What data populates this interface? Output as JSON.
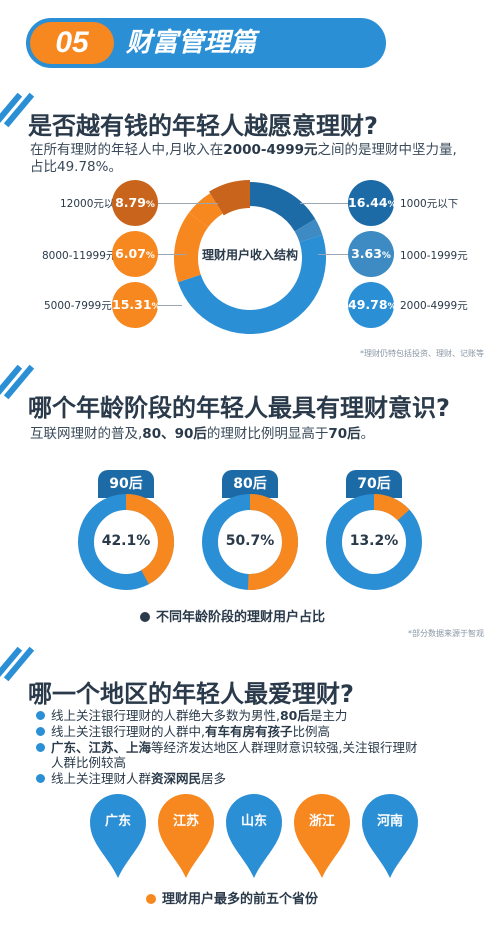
{
  "banner": {
    "number": "05",
    "title": "财富管理篇"
  },
  "section1": {
    "title": "是否越有钱的年轻人越愿意理财?",
    "desc_line1": "在所有理财的年轻人中,月收入在",
    "desc_bold": "2000-4999元",
    "desc_line1b": "之间的是理财中坚力量,",
    "desc_line2": "占比49.78%。",
    "donut_center": "理财用户收入结构",
    "footnote": "*理财仍特包括投资、理财、记账等"
  },
  "section2": {
    "title": "哪个年龄阶段的年轻人最具有理财意识?",
    "desc_pre": "互联网理财的普及,",
    "desc_bold1": "80、90后",
    "desc_mid": "的理财比例明显高于",
    "desc_bold2": "70后",
    "desc_end": "。",
    "legend": "不同年龄阶段的理财用户占比",
    "footnote": "*部分数据来源于智观"
  },
  "section3": {
    "title": "哪一个地区的年轻人最爱理财?",
    "bullets": [
      {
        "pre": "线上关注银行理财的人群绝大多数为男性,",
        "bold": "80后",
        "post": "是主力"
      },
      {
        "pre": "线上关注银行理财的人群中,",
        "bold": "有车有房有孩子",
        "post": "比例高"
      },
      {
        "pre": "",
        "bold": "广东、江苏、上海",
        "post": "等经济发达地区人群理财意识较强,关注银行理财"
      },
      {
        "pre": "",
        "bold": "",
        "post": "人群比例较高"
      },
      {
        "pre": "线上关注理财人群",
        "bold": "资深网民",
        "post": "居多"
      }
    ],
    "provinces": [
      "广东",
      "江苏",
      "山东",
      "浙江",
      "河南"
    ],
    "legend": "理财用户最多的前五个省份"
  },
  "colors": {
    "blue": "#2b8fd6",
    "blue_dark": "#1c6aa6",
    "orange": "#f7871f",
    "orange_dark": "#c8641c"
  },
  "chart_data": [
    {
      "type": "pie",
      "title": "理财用户收入结构",
      "categories": [
        "1000元以下",
        "1000-1999元",
        "2000-4999元",
        "5000-7999元",
        "8000-11999元",
        "12000元以上"
      ],
      "values": [
        16.44,
        3.63,
        49.78,
        15.31,
        6.07,
        8.79
      ],
      "labels": [
        "16.44%",
        "3.63%",
        "49.78%",
        "15.31%",
        "6.07%",
        "8.79%"
      ]
    },
    {
      "type": "pie",
      "title": "不同年龄阶段的理财用户占比",
      "categories": [
        "90后",
        "80后",
        "70后"
      ],
      "values": [
        42.1,
        50.7,
        13.2
      ],
      "labels": [
        "42.1%",
        "50.7%",
        "13.2%"
      ]
    }
  ]
}
